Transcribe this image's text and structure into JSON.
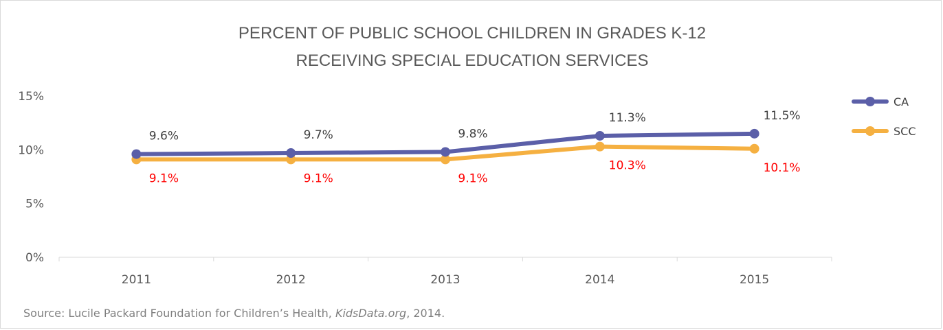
{
  "chart_data": {
    "type": "line",
    "title": [
      "PERCENT OF PUBLIC SCHOOL CHILDREN IN GRADES K-12",
      "RECEIVING SPECIAL EDUCATION SERVICES"
    ],
    "categories": [
      "2011",
      "2012",
      "2013",
      "2014",
      "2015"
    ],
    "series": [
      {
        "name": "CA",
        "values": [
          9.6,
          9.7,
          9.8,
          11.3,
          11.5
        ],
        "labels": [
          "9.6%",
          "9.7%",
          "9.8%",
          "11.3%",
          "11.5%"
        ],
        "color": "#5b5fa8",
        "label_color": "#404040",
        "label_position": "above"
      },
      {
        "name": "SCC",
        "values": [
          9.1,
          9.1,
          9.1,
          10.3,
          10.1
        ],
        "labels": [
          "9.1%",
          "9.1%",
          "9.1%",
          "10.3%",
          "10.1%"
        ],
        "color": "#f5b041",
        "label_color": "#ff0000",
        "label_position": "below"
      }
    ],
    "ylim": [
      0,
      15
    ],
    "yticks": [
      0,
      5,
      10,
      15
    ],
    "ytick_labels": [
      "0%",
      "5%",
      "10%",
      "15%"
    ],
    "xlabel": "",
    "ylabel": "",
    "grid": false,
    "legend_position": "right"
  },
  "source": {
    "prefix": "Source: Lucile Packard Foundation for Children’s Health, ",
    "italic": "KidsData.org",
    "suffix": ", 2014."
  }
}
